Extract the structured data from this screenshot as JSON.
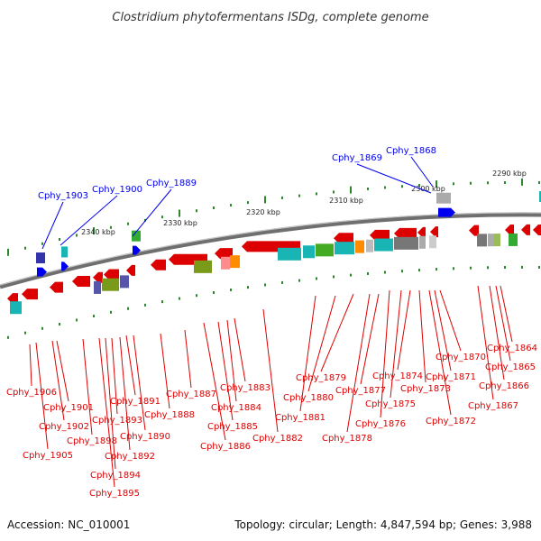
{
  "title": "Clostridium phytofermentans ISDg, complete genome",
  "footer": {
    "accession": "Accession: NC_010001",
    "topology": "Topology: circular; Length: 4,847,594 bp; Genes: 3,988"
  },
  "scale_labels": [
    "2290 kbp",
    "2300 kbp",
    "2310 kbp",
    "2320 kbp",
    "2330 kbp",
    "2340 kbp"
  ],
  "genes_top": [
    "Cphy_1868",
    "Cphy_1869",
    "Cphy_1889",
    "Cphy_1900",
    "Cphy_1903"
  ],
  "genes_bottom": [
    "Cphy_1864",
    "Cphy_1865",
    "Cphy_1866",
    "Cphy_1867",
    "Cphy_1870",
    "Cphy_1871",
    "Cphy_1872",
    "Cphy_1873",
    "Cphy_1874",
    "Cphy_1875",
    "Cphy_1876",
    "Cphy_1877",
    "Cphy_1878",
    "Cphy_1879",
    "Cphy_1880",
    "Cphy_1881",
    "Cphy_1882",
    "Cphy_1883",
    "Cphy_1884",
    "Cphy_1885",
    "Cphy_1886",
    "Cphy_1887",
    "Cphy_1888",
    "Cphy_1890",
    "Cphy_1891",
    "Cphy_1892",
    "Cphy_1893",
    "Cphy_1894",
    "Cphy_1895",
    "Cphy_1898",
    "Cphy_1901",
    "Cphy_1902",
    "Cphy_1905",
    "Cphy_1906"
  ],
  "colors": {
    "forward": "#0000ee",
    "reverse": "#dd0000",
    "backbone": "#777777",
    "tick": "#2a8a2a"
  }
}
